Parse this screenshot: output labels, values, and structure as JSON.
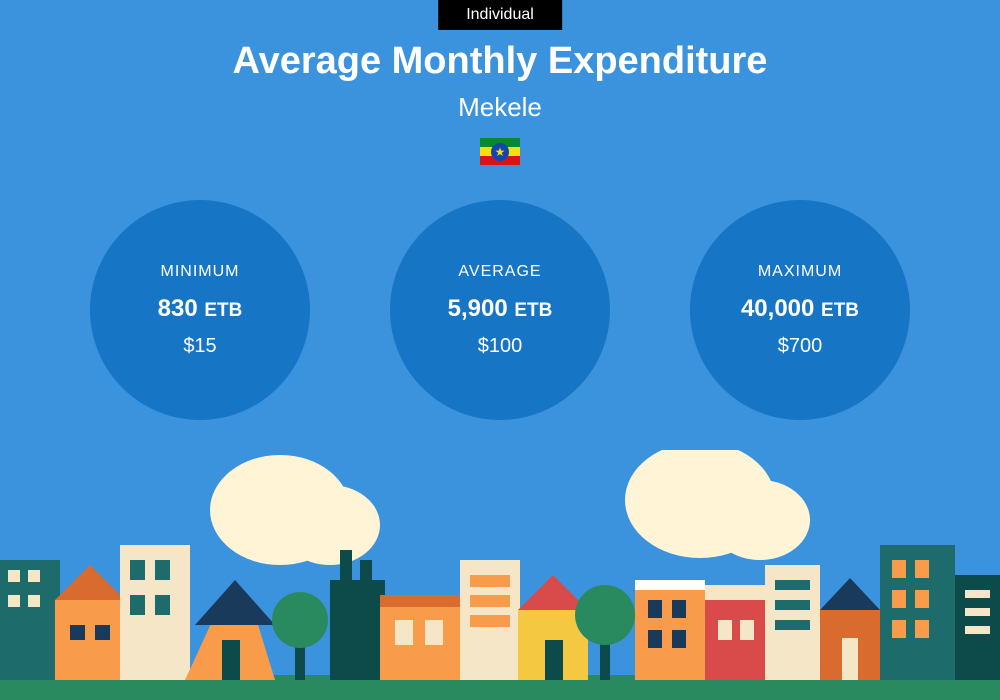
{
  "colors": {
    "background": "#3b93dd",
    "badge_bg": "#000000",
    "circle_bg": "#1676c5",
    "text": "#ffffff",
    "flag_green": "#078930",
    "flag_yellow": "#fcdd09",
    "flag_red": "#da121a",
    "flag_emblem": "#0f47af",
    "city_ground": "#2a8a5f",
    "city_cloud": "#fff5d6",
    "city_orange": "#f89b4a",
    "city_dark_orange": "#d96b2e",
    "city_teal": "#1e6b6b",
    "city_dark_teal": "#0d4a4a",
    "city_cream": "#f5e6c8",
    "city_yellow": "#f5c842",
    "city_navy": "#1a3a5c",
    "city_red": "#d94a4a",
    "city_white": "#ffffff"
  },
  "badge": "Individual",
  "title": "Average Monthly Expenditure",
  "subtitle": "Mekele",
  "stats": [
    {
      "label": "MINIMUM",
      "amount": "830",
      "currency": "ETB",
      "usd": "$15"
    },
    {
      "label": "AVERAGE",
      "amount": "5,900",
      "currency": "ETB",
      "usd": "$100"
    },
    {
      "label": "MAXIMUM",
      "amount": "40,000",
      "currency": "ETB",
      "usd": "$700"
    }
  ]
}
